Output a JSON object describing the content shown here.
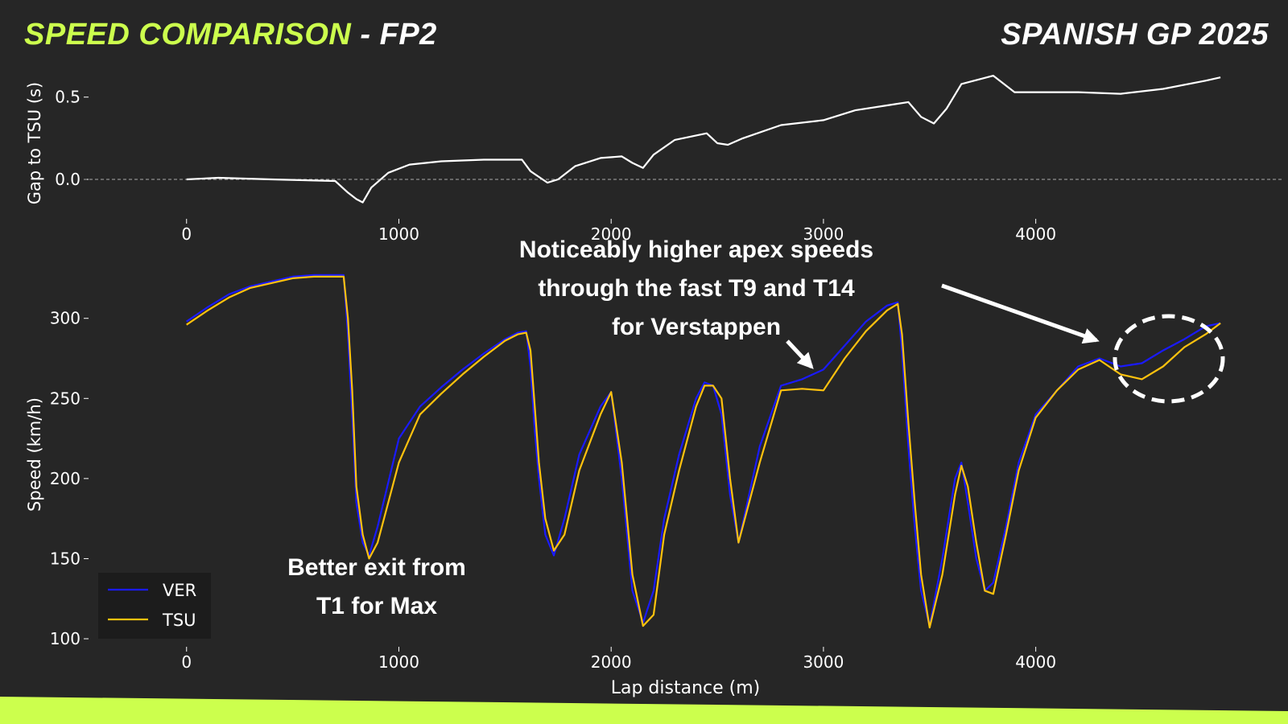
{
  "header": {
    "title_highlight": "SPEED COMPARISON",
    "title_rest": " - FP2",
    "event": "SPANISH GP 2025"
  },
  "colors": {
    "background": "#262626",
    "accent": "#ccff4d",
    "ver": "#1a1aff",
    "tsu": "#ffc20e",
    "gap_line": "#ffffff",
    "text": "#ffffff"
  },
  "annotations": [
    "Noticeably higher apex speeds through the fast T9 and T14 for Verstappen",
    "Better exit from T1 for Max"
  ],
  "chart_data": [
    {
      "type": "line",
      "ylabel": "Gap to TSU (s)",
      "xlim": [
        -200,
        4900
      ],
      "ylim": [
        -0.22,
        0.66
      ],
      "xticks": [
        0,
        1000,
        2000,
        3000,
        4000
      ],
      "yticks": [
        0.0,
        0.5
      ],
      "ytick_labels": [
        "0.0",
        "0.5"
      ],
      "zero_line": true,
      "grid": false,
      "series": [
        {
          "color": "#ffffff",
          "x": [
            0,
            150,
            400,
            700,
            760,
            800,
            830,
            870,
            950,
            1050,
            1200,
            1400,
            1580,
            1620,
            1700,
            1750,
            1830,
            1950,
            2050,
            2100,
            2150,
            2200,
            2300,
            2450,
            2500,
            2550,
            2620,
            2800,
            3000,
            3150,
            3300,
            3400,
            3460,
            3520,
            3580,
            3650,
            3800,
            3830,
            3900,
            4000,
            4200,
            4400,
            4600,
            4800,
            4870
          ],
          "y": [
            0.0,
            0.01,
            0.0,
            -0.01,
            -0.08,
            -0.12,
            -0.14,
            -0.05,
            0.04,
            0.09,
            0.11,
            0.12,
            0.12,
            0.05,
            -0.02,
            0.0,
            0.08,
            0.13,
            0.14,
            0.1,
            0.07,
            0.15,
            0.24,
            0.28,
            0.22,
            0.21,
            0.25,
            0.33,
            0.36,
            0.42,
            0.45,
            0.47,
            0.38,
            0.34,
            0.43,
            0.58,
            0.63,
            0.6,
            0.53,
            0.53,
            0.53,
            0.52,
            0.55,
            0.6,
            0.62
          ]
        }
      ]
    },
    {
      "type": "line",
      "xlabel": "Lap distance (m)",
      "ylabel": "Speed (km/h)",
      "xlim": [
        -200,
        4900
      ],
      "ylim": [
        97,
        333
      ],
      "xticks": [
        0,
        1000,
        2000,
        3000,
        4000
      ],
      "yticks": [
        100,
        150,
        200,
        250,
        300
      ],
      "legend_position": "bottom-left",
      "grid": false,
      "series": [
        {
          "name": "VER",
          "color": "#1a1aff",
          "x": [
            0,
            100,
            200,
            300,
            400,
            500,
            600,
            700,
            740,
            760,
            780,
            800,
            830,
            860,
            900,
            1000,
            1100,
            1200,
            1300,
            1400,
            1500,
            1560,
            1600,
            1620,
            1640,
            1660,
            1690,
            1730,
            1780,
            1850,
            1950,
            2000,
            2050,
            2100,
            2150,
            2200,
            2250,
            2320,
            2400,
            2440,
            2480,
            2520,
            2560,
            2600,
            2700,
            2800,
            2900,
            3000,
            3100,
            3200,
            3300,
            3350,
            3370,
            3400,
            3430,
            3460,
            3500,
            3560,
            3620,
            3650,
            3680,
            3720,
            3760,
            3800,
            3860,
            3920,
            4000,
            4100,
            4200,
            4300,
            4400,
            4500,
            4600,
            4700,
            4800,
            4870
          ],
          "y": [
            298,
            307,
            315,
            320,
            323,
            326,
            327,
            327,
            327,
            290,
            240,
            185,
            160,
            152,
            170,
            225,
            245,
            257,
            268,
            278,
            287,
            291,
            292,
            270,
            230,
            200,
            165,
            152,
            175,
            215,
            245,
            254,
            200,
            130,
            110,
            130,
            175,
            215,
            250,
            260,
            258,
            240,
            190,
            160,
            220,
            258,
            262,
            268,
            283,
            298,
            308,
            310,
            280,
            220,
            170,
            130,
            108,
            150,
            200,
            210,
            185,
            150,
            130,
            135,
            170,
            210,
            240,
            255,
            270,
            275,
            270,
            272,
            280,
            287,
            295,
            297
          ]
        },
        {
          "name": "TSU",
          "color": "#ffc20e",
          "x": [
            0,
            100,
            200,
            300,
            400,
            500,
            600,
            700,
            740,
            760,
            780,
            800,
            830,
            860,
            900,
            1000,
            1100,
            1200,
            1300,
            1400,
            1500,
            1560,
            1600,
            1620,
            1640,
            1660,
            1690,
            1730,
            1780,
            1850,
            1950,
            2000,
            2050,
            2100,
            2150,
            2200,
            2250,
            2320,
            2400,
            2440,
            2480,
            2520,
            2560,
            2600,
            2700,
            2800,
            2900,
            3000,
            3100,
            3200,
            3300,
            3350,
            3370,
            3400,
            3430,
            3460,
            3500,
            3560,
            3620,
            3650,
            3680,
            3720,
            3760,
            3800,
            3860,
            3920,
            4000,
            4100,
            4200,
            4300,
            4400,
            4500,
            4600,
            4700,
            4800,
            4870
          ],
          "y": [
            296,
            305,
            313,
            319,
            322,
            325,
            326,
            326,
            326,
            300,
            255,
            195,
            165,
            150,
            160,
            210,
            240,
            253,
            265,
            276,
            286,
            290,
            291,
            280,
            245,
            210,
            175,
            155,
            165,
            205,
            240,
            254,
            210,
            140,
            108,
            115,
            165,
            205,
            245,
            258,
            258,
            250,
            200,
            160,
            210,
            255,
            256,
            255,
            275,
            292,
            305,
            309,
            290,
            235,
            185,
            140,
            107,
            140,
            190,
            208,
            195,
            160,
            130,
            128,
            165,
            205,
            238,
            255,
            268,
            274,
            265,
            262,
            270,
            282,
            290,
            297
          ]
        }
      ]
    }
  ]
}
